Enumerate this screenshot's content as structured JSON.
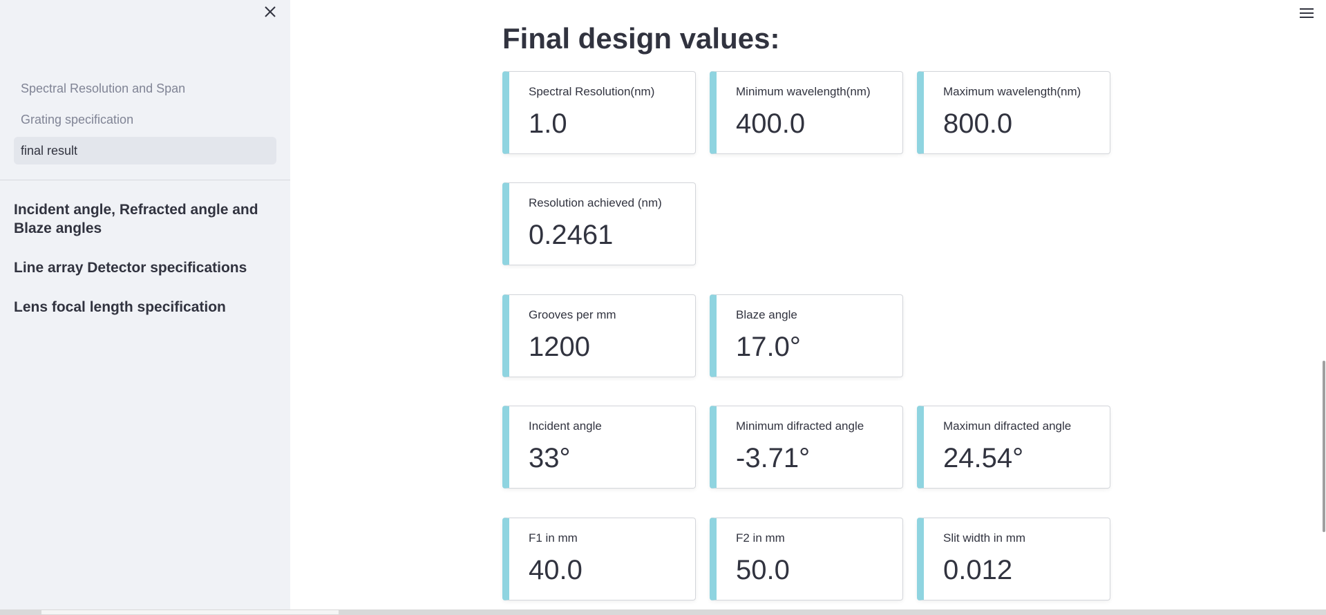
{
  "sidebar": {
    "nav_items": [
      {
        "label": "Spectral Resolution and Span",
        "active": false
      },
      {
        "label": "Grating specification",
        "active": false
      },
      {
        "label": "final result",
        "active": true
      }
    ],
    "links": [
      {
        "label": "Incident angle, Refracted angle and Blaze angles"
      },
      {
        "label": "Line array Detector specifications"
      },
      {
        "label": "Lens focal length specification"
      }
    ]
  },
  "main": {
    "title": "Final design values:",
    "metrics": {
      "spectral_resolution": {
        "label": "Spectral Resolution(nm)",
        "value": "1.0"
      },
      "min_wavelength": {
        "label": "Minimum wavelength(nm)",
        "value": "400.0"
      },
      "max_wavelength": {
        "label": "Maximum wavelength(nm)",
        "value": "800.0"
      },
      "resolution_achieved": {
        "label": "Resolution achieved (nm)",
        "value": "0.2461"
      },
      "grooves_per_mm": {
        "label": "Grooves per mm",
        "value": "1200"
      },
      "blaze_angle": {
        "label": "Blaze angle",
        "value": "17.0°"
      },
      "incident_angle": {
        "label": "Incident angle",
        "value": "33°"
      },
      "min_difracted_angle": {
        "label": "Minimum difracted angle",
        "value": "-3.71°"
      },
      "max_difracted_angle": {
        "label": "Maximun difracted angle",
        "value": "24.54°"
      },
      "f1": {
        "label": "F1 in mm",
        "value": "40.0"
      },
      "f2": {
        "label": "F2 in mm",
        "value": "50.0"
      },
      "slit_width": {
        "label": "Slit width in mm",
        "value": "0.012"
      }
    }
  },
  "colors": {
    "sidebar_bg": "#f0f2f6",
    "card_accent": "#8fd4e0",
    "text": "#31333f"
  },
  "icons": {
    "close": "close-icon",
    "menu": "hamburger-menu-icon"
  }
}
